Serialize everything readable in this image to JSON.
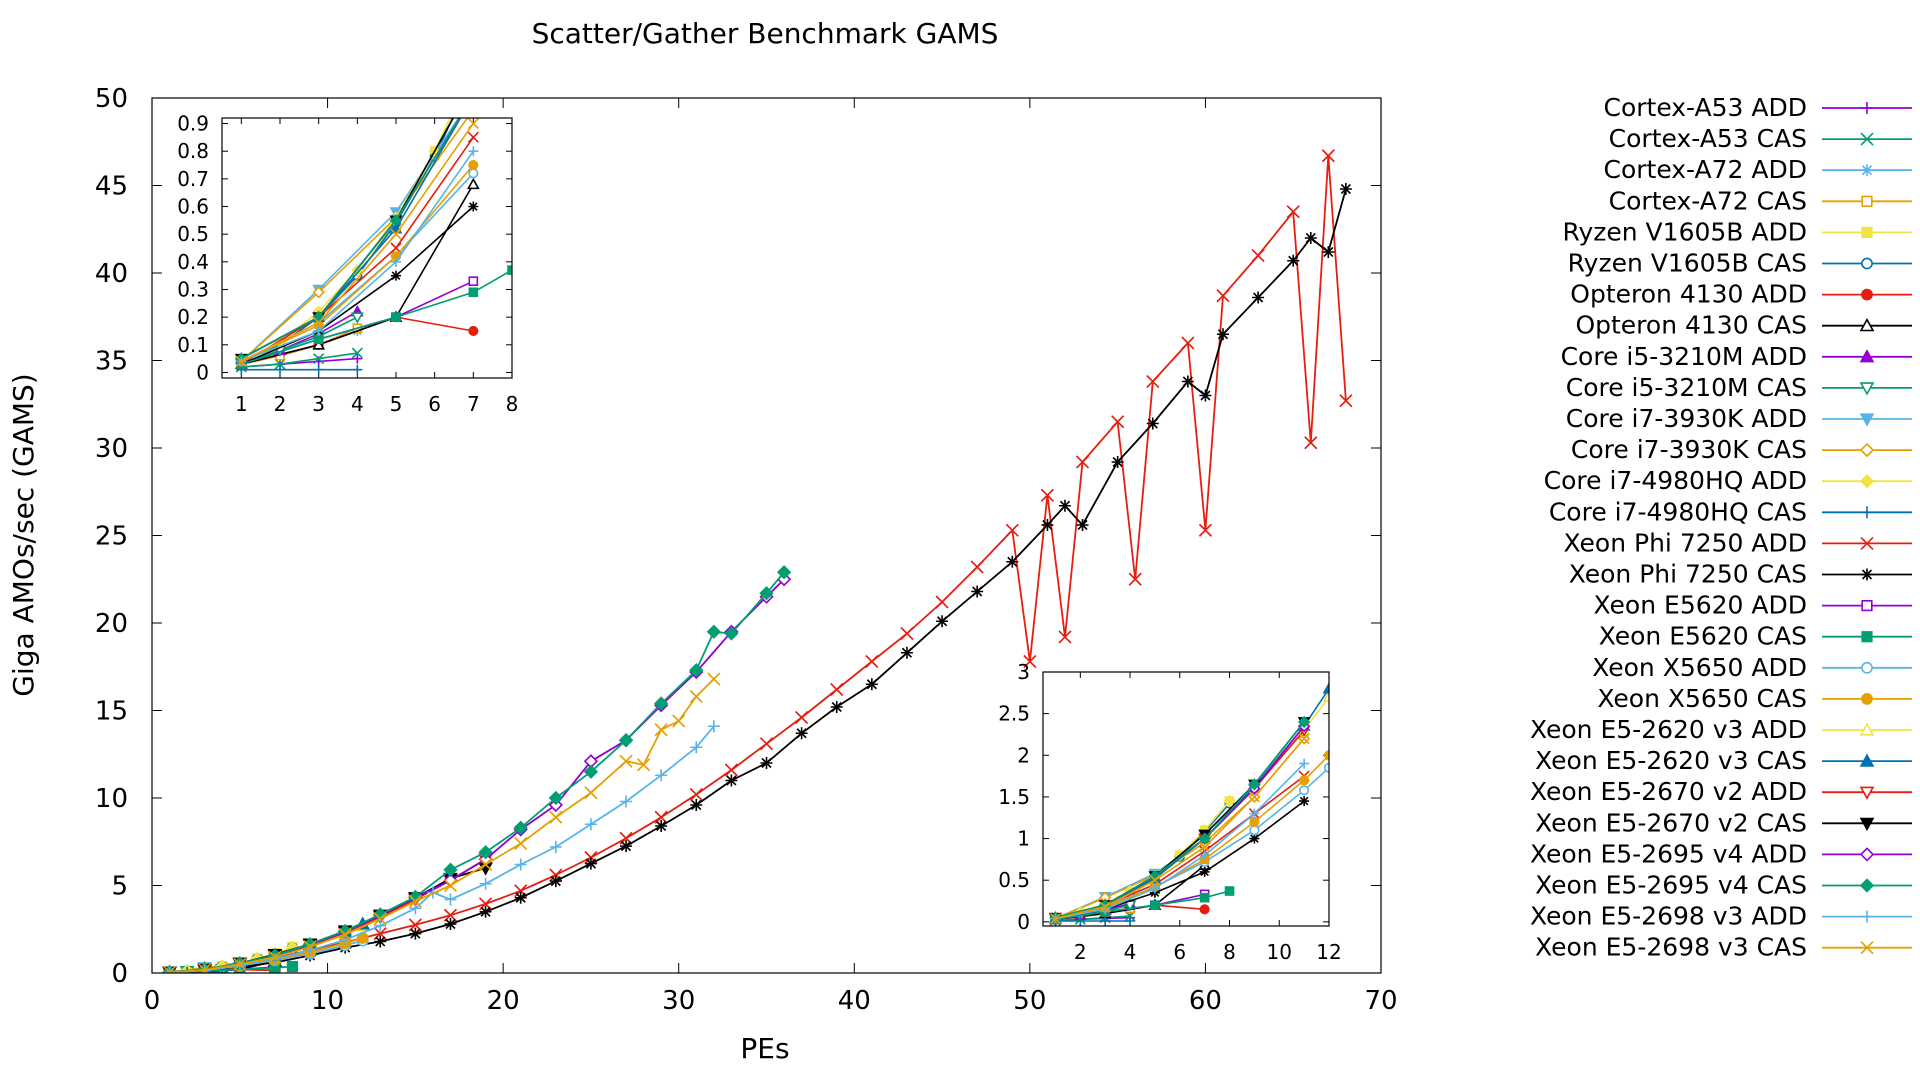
{
  "chart_data": {
    "type": "line",
    "title": "Scatter/Gather Benchmark GAMS",
    "xlabel": "PEs",
    "ylabel": "Giga AMOs/sec (GAMS)",
    "xlim": [
      0,
      70
    ],
    "ylim": [
      0,
      50
    ],
    "xticks": [
      0,
      10,
      20,
      30,
      40,
      50,
      60,
      70
    ],
    "yticks": [
      0,
      5,
      10,
      15,
      20,
      25,
      30,
      35,
      40,
      45,
      50
    ],
    "legend_position": "right, outside plot",
    "grid": false,
    "series": [
      {
        "name": "Cortex-A53 ADD",
        "color": "#9400d3",
        "marker": "plus",
        "x": [
          1,
          2,
          3,
          4
        ],
        "y": [
          0.02,
          0.03,
          0.04,
          0.05
        ]
      },
      {
        "name": "Cortex-A53 CAS",
        "color": "#009e73",
        "marker": "cross",
        "x": [
          1,
          2,
          3,
          4
        ],
        "y": [
          0.02,
          0.03,
          0.05,
          0.07
        ]
      },
      {
        "name": "Cortex-A72 ADD",
        "color": "#56b4e9",
        "marker": "star",
        "x": [
          1,
          2,
          3,
          4
        ],
        "y": [
          0.03,
          0.06,
          0.1,
          0.15
        ]
      },
      {
        "name": "Cortex-A72 CAS",
        "color": "#e69f00",
        "marker": "square",
        "x": [
          1,
          2,
          3,
          4
        ],
        "y": [
          0.03,
          0.06,
          0.1,
          0.16
        ]
      },
      {
        "name": "Ryzen V1605B ADD",
        "color": "#f0e442",
        "marker": "fsquare",
        "x": [
          1,
          2,
          3,
          4,
          5,
          6,
          7,
          8
        ],
        "y": [
          0.04,
          0.1,
          0.2,
          0.35,
          0.55,
          0.8,
          1.1,
          1.45
        ]
      },
      {
        "name": "Ryzen V1605B CAS",
        "color": "#0072b2",
        "marker": "circle",
        "x": [
          1,
          2,
          3,
          4,
          5,
          6,
          7,
          8
        ],
        "y": [
          0.04,
          0.1,
          0.2,
          0.35,
          0.54,
          0.78,
          1.08,
          1.42
        ]
      },
      {
        "name": "Opteron 4130 ADD",
        "color": "#e51e10",
        "marker": "fcircle",
        "x": [
          1,
          3,
          5,
          7
        ],
        "y": [
          0.03,
          0.1,
          0.2,
          0.15
        ]
      },
      {
        "name": "Opteron 4130 CAS",
        "color": "#000000",
        "marker": "triangle",
        "x": [
          1,
          3,
          5,
          7
        ],
        "y": [
          0.03,
          0.1,
          0.2,
          0.68
        ]
      },
      {
        "name": "Core i5-3210M ADD",
        "color": "#9400d3",
        "marker": "ftriangle",
        "x": [
          1,
          2,
          3,
          4
        ],
        "y": [
          0.03,
          0.08,
          0.14,
          0.22
        ]
      },
      {
        "name": "Core i5-3210M CAS",
        "color": "#009e73",
        "marker": "itriangle",
        "x": [
          1,
          2,
          3,
          4
        ],
        "y": [
          0.03,
          0.08,
          0.13,
          0.2
        ]
      },
      {
        "name": "Core i7-3930K ADD",
        "color": "#56b4e9",
        "marker": "fitriangle",
        "x": [
          1,
          3,
          5,
          7,
          9,
          11
        ],
        "y": [
          0.04,
          0.3,
          0.58,
          1.0,
          1.6,
          2.3
        ]
      },
      {
        "name": "Core i7-3930K CAS",
        "color": "#e69f00",
        "marker": "diamond",
        "x": [
          1,
          3,
          5,
          7,
          9,
          11
        ],
        "y": [
          0.04,
          0.29,
          0.56,
          0.95,
          1.5,
          2.2
        ]
      },
      {
        "name": "Core i7-4980HQ ADD",
        "color": "#f0e442",
        "marker": "fdiamond",
        "x": [
          1,
          2,
          3,
          4,
          5,
          6,
          7,
          8
        ],
        "y": [
          0.04,
          0.11,
          0.22,
          0.37,
          0.56,
          0.8,
          1.1,
          1.45
        ]
      },
      {
        "name": "Core i7-4980HQ CAS",
        "color": "#0072b2",
        "marker": "plus",
        "x": [
          1,
          2,
          3,
          4
        ],
        "y": [
          0.01,
          0.01,
          0.01,
          0.01
        ]
      },
      {
        "name": "Xeon Phi 7250 ADD",
        "color": "#e51e10",
        "marker": "cross",
        "x": [
          1,
          3,
          5,
          7,
          9,
          11,
          13,
          15,
          17,
          19,
          21,
          23,
          25,
          27,
          29,
          31,
          33,
          35,
          37,
          39,
          41,
          43,
          45,
          47,
          49,
          50,
          51,
          52,
          53,
          55,
          56,
          57,
          59,
          60,
          61,
          63,
          65,
          66,
          67,
          68
        ],
        "y": [
          0.03,
          0.2,
          0.45,
          0.85,
          1.3,
          1.75,
          2.25,
          2.75,
          3.3,
          3.95,
          4.7,
          5.6,
          6.6,
          7.7,
          8.9,
          10.2,
          11.6,
          13.1,
          14.6,
          16.2,
          17.8,
          19.4,
          21.2,
          23.2,
          25.3,
          17.8,
          27.3,
          19.2,
          29.2,
          31.5,
          22.5,
          33.8,
          36.0,
          25.3,
          38.7,
          41.0,
          43.5,
          30.3,
          46.7,
          32.7
        ]
      },
      {
        "name": "Xeon Phi 7250 CAS",
        "color": "#000000",
        "marker": "star",
        "x": [
          1,
          3,
          5,
          7,
          9,
          11,
          13,
          15,
          17,
          19,
          21,
          23,
          25,
          27,
          29,
          31,
          33,
          35,
          37,
          39,
          41,
          43,
          45,
          47,
          49,
          51,
          52,
          53,
          55,
          57,
          59,
          60,
          61,
          63,
          65,
          66,
          67,
          68
        ],
        "y": [
          0.03,
          0.15,
          0.35,
          0.6,
          1.0,
          1.45,
          1.8,
          2.25,
          2.8,
          3.5,
          4.3,
          5.25,
          6.25,
          7.25,
          8.4,
          9.6,
          11.0,
          12.0,
          13.7,
          15.2,
          16.5,
          18.3,
          20.1,
          21.8,
          23.5,
          25.6,
          26.7,
          25.6,
          29.2,
          31.4,
          33.8,
          33.0,
          36.5,
          38.6,
          40.7,
          42.0,
          41.2,
          44.8
        ]
      },
      {
        "name": "Xeon E5620 ADD",
        "color": "#9400d3",
        "marker": "square",
        "x": [
          1,
          3,
          5,
          7
        ],
        "y": [
          0.03,
          0.12,
          0.2,
          0.33
        ]
      },
      {
        "name": "Xeon E5620 CAS",
        "color": "#009e73",
        "marker": "fsquare",
        "x": [
          1,
          3,
          5,
          7,
          8
        ],
        "y": [
          0.03,
          0.12,
          0.2,
          0.29,
          0.37
        ]
      },
      {
        "name": "Xeon X5650 ADD",
        "color": "#56b4e9",
        "marker": "circle",
        "x": [
          1,
          3,
          5,
          7,
          9,
          11,
          12
        ],
        "y": [
          0.04,
          0.18,
          0.42,
          0.72,
          1.1,
          1.58,
          1.85
        ]
      },
      {
        "name": "Xeon X5650 CAS",
        "color": "#e69f00",
        "marker": "fcircle",
        "x": [
          1,
          3,
          5,
          7,
          9,
          11,
          12
        ],
        "y": [
          0.04,
          0.17,
          0.42,
          0.75,
          1.2,
          1.7,
          2.0
        ]
      },
      {
        "name": "Xeon E5-2620 v3 ADD",
        "color": "#f0e442",
        "marker": "triangle",
        "x": [
          1,
          3,
          5,
          7,
          9,
          11,
          12
        ],
        "y": [
          0.05,
          0.2,
          0.52,
          1.0,
          1.6,
          2.3,
          2.7
        ]
      },
      {
        "name": "Xeon E5-2620 v3 CAS",
        "color": "#0072b2",
        "marker": "ftriangle",
        "x": [
          1,
          3,
          5,
          7,
          9,
          11,
          12
        ],
        "y": [
          0.05,
          0.2,
          0.52,
          1.0,
          1.62,
          2.35,
          2.8
        ]
      },
      {
        "name": "Xeon E5-2670 v2 ADD",
        "color": "#e51e10",
        "marker": "itriangle",
        "x": [
          1,
          3,
          5,
          7,
          9,
          11,
          13,
          15,
          17,
          19
        ],
        "y": [
          0.05,
          0.2,
          0.55,
          1.0,
          1.6,
          2.3,
          3.2,
          4.2,
          5.3,
          6.5
        ]
      },
      {
        "name": "Xeon E5-2670 v2 CAS",
        "color": "#000000",
        "marker": "fitriangle",
        "x": [
          1,
          3,
          5,
          7,
          9,
          11,
          13,
          15,
          17,
          19
        ],
        "y": [
          0.05,
          0.2,
          0.55,
          1.05,
          1.65,
          2.4,
          3.3,
          4.3,
          5.4,
          6.0
        ]
      },
      {
        "name": "Xeon E5-2695 v4 ADD",
        "color": "#9400d3",
        "marker": "diamond",
        "x": [
          1,
          3,
          5,
          7,
          9,
          11,
          13,
          15,
          17,
          19,
          21,
          23,
          25,
          27,
          29,
          31,
          33,
          35,
          36
        ],
        "y": [
          0.05,
          0.2,
          0.55,
          1.0,
          1.6,
          2.35,
          3.3,
          4.3,
          5.3,
          6.5,
          8.2,
          9.6,
          12.1,
          13.3,
          15.3,
          17.2,
          19.5,
          21.5,
          22.5
        ]
      },
      {
        "name": "Xeon E5-2695 v4 CAS",
        "color": "#009e73",
        "marker": "fdiamond",
        "x": [
          1,
          3,
          5,
          7,
          9,
          11,
          13,
          15,
          17,
          19,
          21,
          23,
          25,
          27,
          29,
          31,
          32,
          33,
          35,
          36
        ],
        "y": [
          0.05,
          0.2,
          0.55,
          1.0,
          1.65,
          2.4,
          3.35,
          4.35,
          5.9,
          6.9,
          8.3,
          10.0,
          11.5,
          13.3,
          15.4,
          17.3,
          19.5,
          19.4,
          21.7,
          22.9
        ]
      },
      {
        "name": "Xeon E5-2698 v3 ADD",
        "color": "#56b4e9",
        "marker": "plus",
        "x": [
          1,
          3,
          5,
          7,
          9,
          11,
          13,
          15,
          16,
          17,
          19,
          21,
          23,
          25,
          27,
          29,
          31,
          32
        ],
        "y": [
          0.04,
          0.15,
          0.4,
          0.8,
          1.3,
          1.9,
          2.7,
          3.7,
          4.6,
          4.2,
          5.1,
          6.2,
          7.2,
          8.5,
          9.8,
          11.3,
          12.9,
          14.1
        ]
      },
      {
        "name": "Xeon E5-2698 v3 CAS",
        "color": "#e69f00",
        "marker": "cross",
        "x": [
          1,
          3,
          5,
          7,
          9,
          11,
          13,
          15,
          17,
          19,
          21,
          23,
          25,
          27,
          28,
          29,
          30,
          31,
          32
        ],
        "y": [
          0.04,
          0.18,
          0.5,
          0.9,
          1.5,
          2.2,
          3.1,
          4.1,
          5.0,
          6.2,
          7.4,
          8.9,
          10.3,
          12.1,
          11.9,
          13.9,
          14.4,
          15.8,
          16.8
        ]
      }
    ],
    "insets": [
      {
        "name": "low-pe-zoom",
        "xlim": [
          0.5,
          8
        ],
        "ylim": [
          -0.02,
          0.92
        ],
        "xticks": [
          1,
          2,
          3,
          4,
          5,
          6,
          7,
          8
        ],
        "yticks": [
          0,
          0.1,
          0.2,
          0.3,
          0.4,
          0.5,
          0.6,
          0.7,
          0.8,
          0.9
        ]
      },
      {
        "name": "mid-pe-zoom",
        "xlim": [
          0.5,
          12
        ],
        "ylim": [
          -0.05,
          3
        ],
        "xticks": [
          2,
          4,
          6,
          8,
          10,
          12
        ],
        "yticks": [
          0,
          0.5,
          1,
          1.5,
          2,
          2.5,
          3
        ]
      }
    ]
  }
}
